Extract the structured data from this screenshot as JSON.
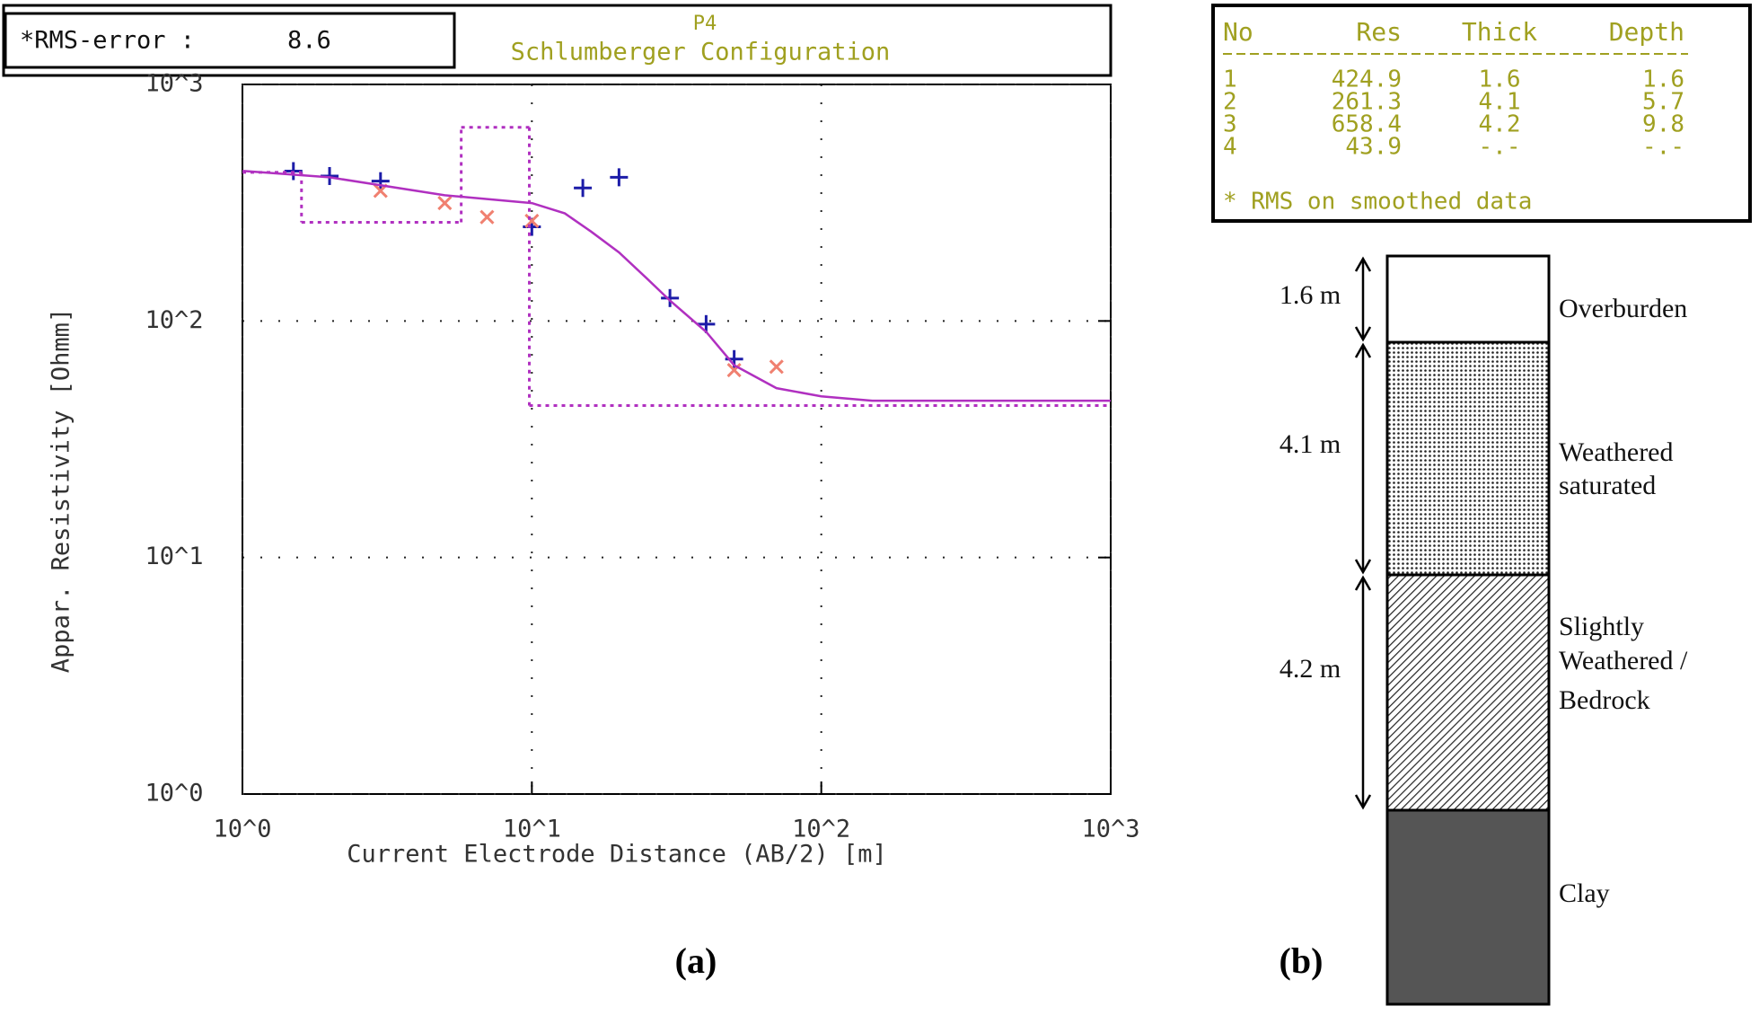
{
  "chart_data": {
    "type": "scatter",
    "title": "Schlumberger Configuration",
    "subtitle": "P4",
    "rms_label": "*RMS-error :",
    "rms_value": 8.6,
    "x_label": "Current Electrode Distance (AB/2) [m]",
    "y_label": "Appar. Resistivity [Ohmm]",
    "log_x": true,
    "log_y": true,
    "grid": true,
    "xlim": [
      1,
      1000
    ],
    "ylim": [
      1,
      1000
    ],
    "xticks": [
      {
        "value": 1,
        "label": "10^0"
      },
      {
        "value": 10,
        "label": "10^1"
      },
      {
        "value": 100,
        "label": "10^2"
      },
      {
        "value": 1000,
        "label": "10^3"
      }
    ],
    "yticks": [
      {
        "value": 1,
        "label": "10^0"
      },
      {
        "value": 10,
        "label": "10^1"
      },
      {
        "value": 100,
        "label": "10^2"
      },
      {
        "value": 1000,
        "label": "10^3"
      }
    ],
    "series": [
      {
        "type": "scatter",
        "marker": "+",
        "color": "#1c1ca8",
        "x": [
          1.5,
          2,
          3,
          10,
          15,
          20,
          30,
          40,
          50
        ],
        "values": [
          430,
          410,
          390,
          250,
          365,
          405,
          125,
          97,
          69
        ]
      },
      {
        "type": "scatter",
        "marker": "x",
        "color": "#f08070",
        "x": [
          3,
          5,
          7,
          10,
          50,
          70
        ],
        "values": [
          355,
          315,
          275,
          265,
          62,
          64
        ]
      },
      {
        "type": "line",
        "color": "#b030c0",
        "x": [
          1,
          2,
          5,
          10,
          13,
          16,
          20,
          25,
          30,
          40,
          50,
          70,
          100,
          150,
          1000
        ],
        "values": [
          431,
          405,
          340,
          315,
          285,
          239,
          195,
          151,
          122,
          90,
          65,
          52,
          48,
          46,
          46
        ]
      },
      {
        "type": "step",
        "color": "#b030c0",
        "x": [
          1,
          1.6,
          5.7,
          9.8
        ],
        "values": [
          424.9,
          261.3,
          658.4,
          43.9
        ]
      }
    ]
  },
  "table": {
    "headers": [
      "No",
      "Res",
      "Thick",
      "Depth"
    ],
    "rows": [
      [
        "1",
        "424.9",
        "1.6",
        "1.6"
      ],
      [
        "2",
        "261.3",
        "4.1",
        "5.7"
      ],
      [
        "3",
        "658.4",
        "4.2",
        "9.8"
      ],
      [
        "4",
        "43.9",
        "-.-",
        "-.-"
      ]
    ],
    "note": "* RMS on smoothed data"
  },
  "column": {
    "layers": [
      {
        "thickness_label": "1.6 m",
        "lines": [
          "Overburden"
        ]
      },
      {
        "thickness_label": "4.1 m",
        "lines": [
          "Weathered",
          "saturated"
        ]
      },
      {
        "thickness_label": "4.2 m",
        "lines": [
          "Slightly",
          "Weathered /",
          "Bedrock"
        ]
      },
      {
        "lines": [
          "Clay"
        ]
      }
    ]
  },
  "panel_labels": [
    "(a)",
    "(b)"
  ]
}
